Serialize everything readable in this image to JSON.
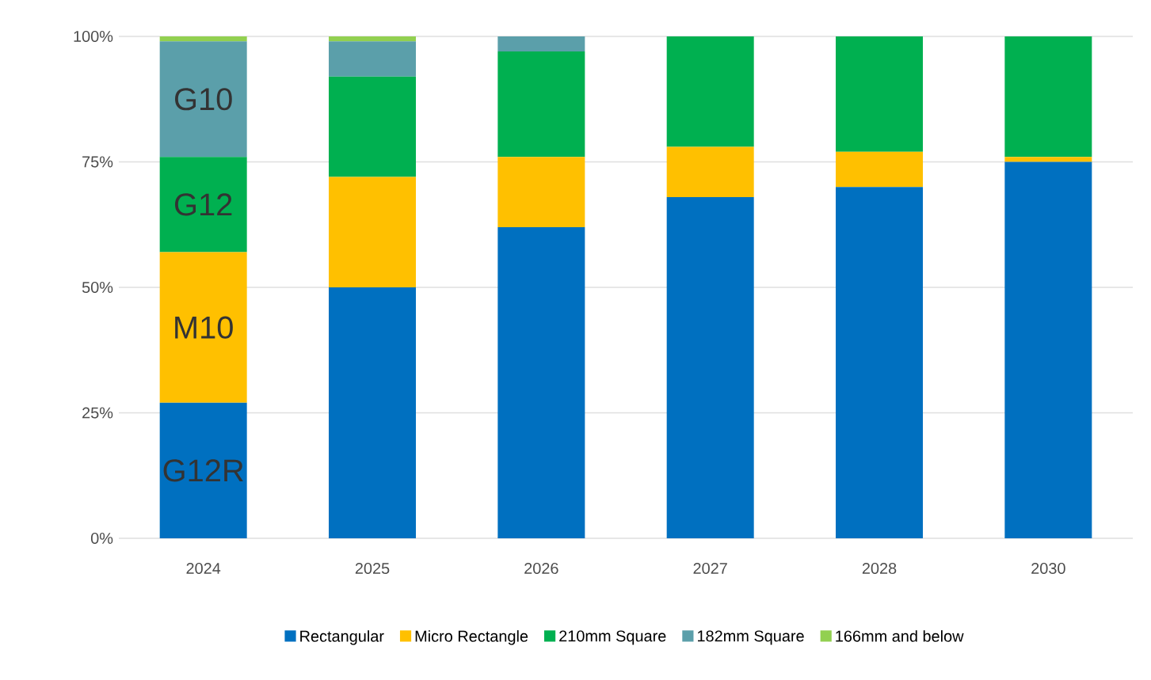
{
  "chart_data": {
    "type": "bar",
    "stacked": true,
    "categories": [
      "2024",
      "2025",
      "2026",
      "2027",
      "2028",
      "2030"
    ],
    "series": [
      {
        "name": "Rectangular",
        "color": "#0070c0",
        "values": [
          27,
          50,
          62,
          68,
          70,
          75
        ]
      },
      {
        "name": "Micro Rectangle",
        "color": "#ffc000",
        "values": [
          30,
          22,
          14,
          10,
          7,
          1
        ]
      },
      {
        "name": "210mm Square",
        "color": "#00b050",
        "values": [
          19,
          20,
          21,
          22,
          23,
          24
        ]
      },
      {
        "name": "182mm Square",
        "color": "#5b9faa",
        "values": [
          23,
          7,
          3,
          null,
          null,
          null
        ]
      },
      {
        "name": "166mm and below",
        "color": "#92d050",
        "values": [
          1,
          1,
          null,
          null,
          null,
          null
        ]
      }
    ],
    "ylim": [
      0,
      100
    ],
    "yticks": [
      {
        "value": 0,
        "label": "0%"
      },
      {
        "value": 25,
        "label": "25%"
      },
      {
        "value": 50,
        "label": "50%"
      },
      {
        "value": 75,
        "label": "75%"
      },
      {
        "value": 100,
        "label": "100%"
      }
    ],
    "grid": "y",
    "legend": "bottom",
    "annotations": [
      "G10",
      "G12",
      "M10",
      "G12R"
    ]
  }
}
